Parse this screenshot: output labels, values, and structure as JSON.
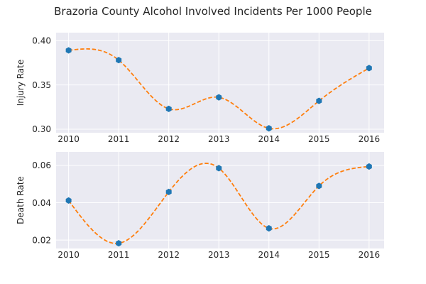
{
  "chart_data": {
    "type": "line",
    "title": "Brazoria County Alcohol Involved Incidents Per 1000 People",
    "subplots": [
      {
        "ylabel": "Injury Rate",
        "x": [
          2010,
          2011,
          2012,
          2013,
          2014,
          2015,
          2016
        ],
        "values": [
          0.389,
          0.378,
          0.323,
          0.336,
          0.301,
          0.332,
          0.369
        ],
        "ylim": [
          0.296,
          0.409
        ],
        "yticks": [
          "0.30",
          "0.35",
          "0.40"
        ],
        "xticks": [
          "2010",
          "2011",
          "2012",
          "2013",
          "2014",
          "2015",
          "2016"
        ],
        "markers": "blue hexagons",
        "fit_line": "orange dashed smooth curve",
        "grid": true
      },
      {
        "ylabel": "Death Rate",
        "x": [
          2010,
          2011,
          2012,
          2013,
          2014,
          2015,
          2016
        ],
        "values": [
          0.0412,
          0.0183,
          0.0458,
          0.0585,
          0.0263,
          0.049,
          0.0594
        ],
        "ylim": [
          0.0155,
          0.0672
        ],
        "yticks": [
          "0.02",
          "0.04",
          "0.06"
        ],
        "xticks": [
          "2010",
          "2011",
          "2012",
          "2013",
          "2014",
          "2015",
          "2016"
        ],
        "markers": "blue hexagons",
        "fit_line": "orange dashed smooth curve",
        "grid": true
      }
    ],
    "colors": {
      "marker": "#1f77b4",
      "fit": "#ff7f0e",
      "background": "#eaeaf2"
    }
  }
}
